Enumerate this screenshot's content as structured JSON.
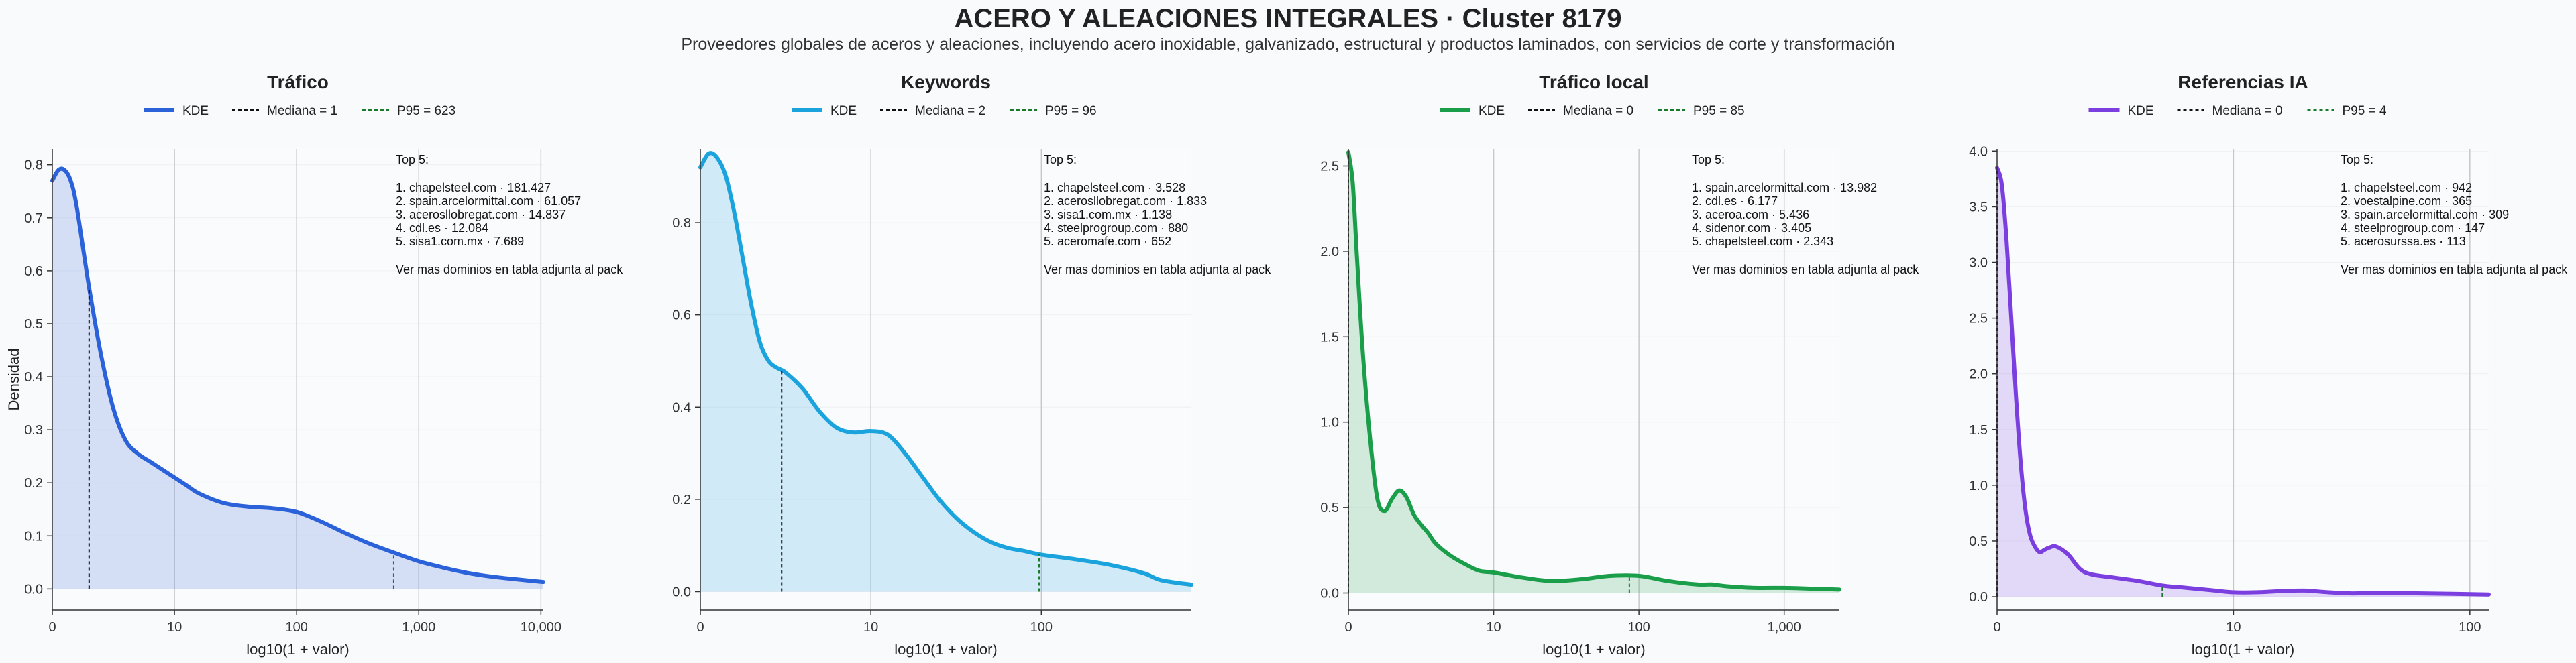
{
  "header": {
    "title": "ACERO Y ALEACIONES INTEGRALES · Cluster 8179",
    "subtitle": "Proveedores globales de aceros y aleaciones, incluyendo acero inoxidable, galvanizado, estructural y productos laminados, con servicios de corte y transformación"
  },
  "colors": {
    "trafico": "#2b62d9",
    "keywords": "#1aa3dc",
    "trafico_local": "#1a9e4a",
    "referencias": "#7b3fe0",
    "p95": "#1a7a2a",
    "median": "#111111"
  },
  "chart_data": [
    {
      "type": "area",
      "title": "Tráfico",
      "xlabel": "log10(1 + valor)",
      "ylabel": "Densidad",
      "legend": {
        "kde": "KDE",
        "median": "Mediana = 1",
        "p95": "P95 = 623"
      },
      "x_log_range": [
        0,
        4.02
      ],
      "ylim": [
        -0.04,
        0.83
      ],
      "xticks": [
        {
          "v": 0,
          "label": "0"
        },
        {
          "v": 1,
          "label": "10"
        },
        {
          "v": 2,
          "label": "100"
        },
        {
          "v": 3,
          "label": "1,000"
        },
        {
          "v": 4,
          "label": "10,000"
        }
      ],
      "yticks": [
        {
          "v": 0,
          "label": "0.0"
        },
        {
          "v": 0.1,
          "label": "0.1"
        },
        {
          "v": 0.2,
          "label": "0.2"
        },
        {
          "v": 0.3,
          "label": "0.3"
        },
        {
          "v": 0.4,
          "label": "0.4"
        },
        {
          "v": 0.5,
          "label": "0.5"
        },
        {
          "v": 0.6,
          "label": "0.6"
        },
        {
          "v": 0.7,
          "label": "0.7"
        },
        {
          "v": 0.8,
          "label": "0.8"
        }
      ],
      "median_x": 0.301,
      "p95_x": 2.795,
      "kde_x": [
        0,
        0.05,
        0.1,
        0.15,
        0.2,
        0.3,
        0.4,
        0.5,
        0.6,
        0.7,
        0.8,
        0.9,
        1.0,
        1.1,
        1.2,
        1.4,
        1.6,
        1.8,
        2.0,
        2.2,
        2.4,
        2.6,
        2.8,
        3.0,
        3.2,
        3.4,
        3.6,
        3.8,
        4.02
      ],
      "kde_y": [
        0.77,
        0.79,
        0.79,
        0.77,
        0.72,
        0.57,
        0.44,
        0.34,
        0.28,
        0.255,
        0.24,
        0.225,
        0.21,
        0.195,
        0.18,
        0.162,
        0.155,
        0.152,
        0.145,
        0.127,
        0.105,
        0.085,
        0.068,
        0.052,
        0.04,
        0.03,
        0.023,
        0.018,
        0.013
      ],
      "top5": {
        "heading": "Top 5:",
        "items": [
          "1. chapelsteel.com · 181.427",
          "2. spain.arcelormittal.com · 61.057",
          "3. acerosllobregat.com · 14.837",
          "4. cdl.es · 12.084",
          "5. sisa1.com.mx · 7.689"
        ],
        "footer": "Ver mas dominios en tabla adjunta al pack"
      }
    },
    {
      "type": "area",
      "title": "Keywords",
      "xlabel": "log10(1 + valor)",
      "ylabel": "",
      "legend": {
        "kde": "KDE",
        "median": "Mediana = 2",
        "p95": "P95 = 96"
      },
      "x_log_range": [
        0,
        2.88
      ],
      "ylim": [
        -0.04,
        0.96
      ],
      "xticks": [
        {
          "v": 0,
          "label": "0"
        },
        {
          "v": 1,
          "label": "10"
        },
        {
          "v": 2,
          "label": "100"
        }
      ],
      "yticks": [
        {
          "v": 0,
          "label": "0.0"
        },
        {
          "v": 0.2,
          "label": "0.2"
        },
        {
          "v": 0.4,
          "label": "0.4"
        },
        {
          "v": 0.6,
          "label": "0.6"
        },
        {
          "v": 0.8,
          "label": "0.8"
        }
      ],
      "median_x": 0.477,
      "p95_x": 1.987,
      "kde_x": [
        0,
        0.05,
        0.1,
        0.15,
        0.2,
        0.25,
        0.3,
        0.35,
        0.4,
        0.45,
        0.5,
        0.6,
        0.7,
        0.8,
        0.9,
        1.0,
        1.1,
        1.2,
        1.3,
        1.4,
        1.5,
        1.6,
        1.7,
        1.8,
        1.9,
        2.0,
        2.2,
        2.4,
        2.6,
        2.7,
        2.88
      ],
      "kde_y": [
        0.92,
        0.95,
        0.94,
        0.9,
        0.82,
        0.72,
        0.62,
        0.54,
        0.5,
        0.485,
        0.475,
        0.44,
        0.39,
        0.355,
        0.345,
        0.348,
        0.34,
        0.3,
        0.25,
        0.2,
        0.16,
        0.13,
        0.108,
        0.095,
        0.088,
        0.08,
        0.07,
        0.058,
        0.04,
        0.025,
        0.015
      ],
      "top5": {
        "heading": "Top 5:",
        "items": [
          "1. chapelsteel.com · 3.528",
          "2. acerosllobregat.com · 1.833",
          "3. sisa1.com.mx · 1.138",
          "4. steelprogroup.com · 880",
          "5. aceromafe.com · 652"
        ],
        "footer": "Ver mas dominios en tabla adjunta al pack"
      }
    },
    {
      "type": "area",
      "title": "Tráfico local",
      "xlabel": "log10(1 + valor)",
      "ylabel": "",
      "legend": {
        "kde": "KDE",
        "median": "Mediana = 0",
        "p95": "P95 = 85"
      },
      "x_log_range": [
        0,
        3.38
      ],
      "ylim": [
        -0.1,
        2.6
      ],
      "xticks": [
        {
          "v": 0,
          "label": "0"
        },
        {
          "v": 1,
          "label": "10"
        },
        {
          "v": 2,
          "label": "100"
        },
        {
          "v": 3,
          "label": "1,000"
        }
      ],
      "yticks": [
        {
          "v": 0,
          "label": "0.0"
        },
        {
          "v": 0.5,
          "label": "0.5"
        },
        {
          "v": 1.0,
          "label": "1.0"
        },
        {
          "v": 1.5,
          "label": "1.5"
        },
        {
          "v": 2.0,
          "label": "2.0"
        },
        {
          "v": 2.5,
          "label": "2.5"
        }
      ],
      "median_x": 0,
      "p95_x": 1.934,
      "kde_x": [
        0,
        0.03,
        0.06,
        0.1,
        0.15,
        0.2,
        0.25,
        0.3,
        0.35,
        0.4,
        0.45,
        0.5,
        0.55,
        0.6,
        0.7,
        0.8,
        0.9,
        1.0,
        1.2,
        1.4,
        1.6,
        1.8,
        2.0,
        2.2,
        2.4,
        2.5,
        2.6,
        2.8,
        3.0,
        3.2,
        3.38
      ],
      "kde_y": [
        2.58,
        2.4,
        1.95,
        1.4,
        0.9,
        0.55,
        0.48,
        0.55,
        0.6,
        0.56,
        0.46,
        0.4,
        0.35,
        0.29,
        0.22,
        0.17,
        0.13,
        0.12,
        0.09,
        0.07,
        0.08,
        0.1,
        0.1,
        0.07,
        0.05,
        0.05,
        0.04,
        0.03,
        0.03,
        0.025,
        0.02
      ],
      "top5": {
        "heading": "Top 5:",
        "items": [
          "1. spain.arcelormittal.com · 13.982",
          "2. cdl.es · 6.177",
          "3. aceroa.com · 5.436",
          "4. sidenor.com · 3.405",
          "5. chapelsteel.com · 2.343"
        ],
        "footer": "Ver mas dominios en tabla adjunta al pack"
      }
    },
    {
      "type": "area",
      "title": "Referencias IA",
      "xlabel": "log10(1 + valor)",
      "ylabel": "",
      "legend": {
        "kde": "KDE",
        "median": "Mediana = 0",
        "p95": "P95 = 4"
      },
      "x_log_range": [
        0,
        2.08
      ],
      "ylim": [
        -0.12,
        4.02
      ],
      "xticks": [
        {
          "v": 0,
          "label": "0"
        },
        {
          "v": 1,
          "label": "10"
        },
        {
          "v": 2,
          "label": "100"
        }
      ],
      "yticks": [
        {
          "v": 0,
          "label": "0.0"
        },
        {
          "v": 0.5,
          "label": "0.5"
        },
        {
          "v": 1.0,
          "label": "1.0"
        },
        {
          "v": 1.5,
          "label": "1.5"
        },
        {
          "v": 2.0,
          "label": "2.0"
        },
        {
          "v": 2.5,
          "label": "2.5"
        },
        {
          "v": 3.0,
          "label": "3.0"
        },
        {
          "v": 3.5,
          "label": "3.5"
        },
        {
          "v": 4.0,
          "label": "4.0"
        }
      ],
      "median_x": 0,
      "p95_x": 0.699,
      "kde_x": [
        0,
        0.02,
        0.04,
        0.06,
        0.08,
        0.1,
        0.12,
        0.14,
        0.16,
        0.18,
        0.2,
        0.22,
        0.25,
        0.3,
        0.35,
        0.4,
        0.5,
        0.6,
        0.7,
        0.8,
        0.9,
        1.0,
        1.1,
        1.2,
        1.3,
        1.4,
        1.5,
        1.6,
        1.8,
        2.08
      ],
      "kde_y": [
        3.85,
        3.7,
        3.2,
        2.5,
        1.8,
        1.2,
        0.78,
        0.55,
        0.45,
        0.4,
        0.42,
        0.44,
        0.45,
        0.38,
        0.25,
        0.2,
        0.17,
        0.14,
        0.1,
        0.08,
        0.06,
        0.04,
        0.04,
        0.05,
        0.055,
        0.04,
        0.03,
        0.035,
        0.03,
        0.02
      ],
      "top5": {
        "heading": "Top 5:",
        "items": [
          "1. chapelsteel.com · 942",
          "2. voestalpine.com · 365",
          "3. spain.arcelormittal.com · 309",
          "4. steelprogroup.com · 147",
          "5. acerosurssa.es · 113"
        ],
        "footer": "Ver mas dominios en tabla adjunta al pack"
      }
    }
  ]
}
